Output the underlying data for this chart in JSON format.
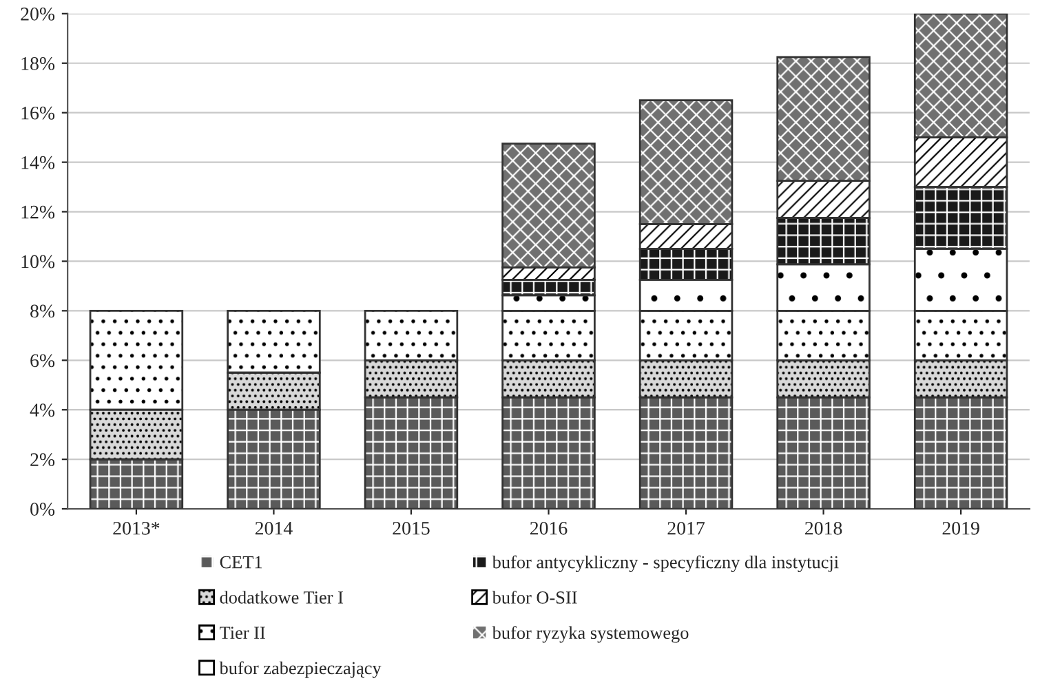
{
  "chart_data": {
    "type": "bar",
    "stacked": true,
    "categories": [
      "2013*",
      "2014",
      "2015",
      "2016",
      "2017",
      "2018",
      "2019"
    ],
    "series": [
      {
        "name": "CET1",
        "color": "#5a5a5a",
        "values": [
          2,
          4,
          4.5,
          4.5,
          4.5,
          4.5,
          4.5
        ]
      },
      {
        "name": "dodatkowe Tier I",
        "color": "#d8d8d8",
        "values": [
          2,
          1.5,
          1.5,
          1.5,
          1.5,
          1.5,
          1.5
        ]
      },
      {
        "name": "Tier II",
        "color": "#ffffff",
        "values": [
          4,
          2.5,
          2,
          2,
          2,
          2,
          2
        ]
      },
      {
        "name": "bufor zabezpieczający",
        "color": "#ffffff",
        "values": [
          null,
          null,
          null,
          0.625,
          1.25,
          1.875,
          2.5
        ]
      },
      {
        "name": "bufor antycykliczny - specyficzny dla instytucji",
        "color": "#1a1a1a",
        "values": [
          null,
          null,
          null,
          0.625,
          1.25,
          1.875,
          2.5
        ]
      },
      {
        "name": "bufor O-SII",
        "color": "#ffffff",
        "values": [
          null,
          null,
          null,
          0.5,
          1,
          1.5,
          2
        ]
      },
      {
        "name": "bufor ryzyka systemowego",
        "color": "#707070",
        "values": [
          null,
          null,
          null,
          5,
          5,
          5,
          5
        ]
      }
    ],
    "ylim": [
      0,
      20
    ],
    "yticks": [
      {
        "value": 0,
        "label": "0%"
      },
      {
        "value": 2,
        "label": "2%"
      },
      {
        "value": 4,
        "label": "4%"
      },
      {
        "value": 6,
        "label": "6%"
      },
      {
        "value": 8,
        "label": "8%"
      },
      {
        "value": 10,
        "label": "10%"
      },
      {
        "value": 12,
        "label": "12%"
      },
      {
        "value": 14,
        "label": "14%"
      },
      {
        "value": 16,
        "label": "16%"
      },
      {
        "value": 18,
        "label": "18%"
      },
      {
        "value": 20,
        "label": "20%"
      }
    ],
    "grid": "y",
    "legend": "bottom"
  }
}
